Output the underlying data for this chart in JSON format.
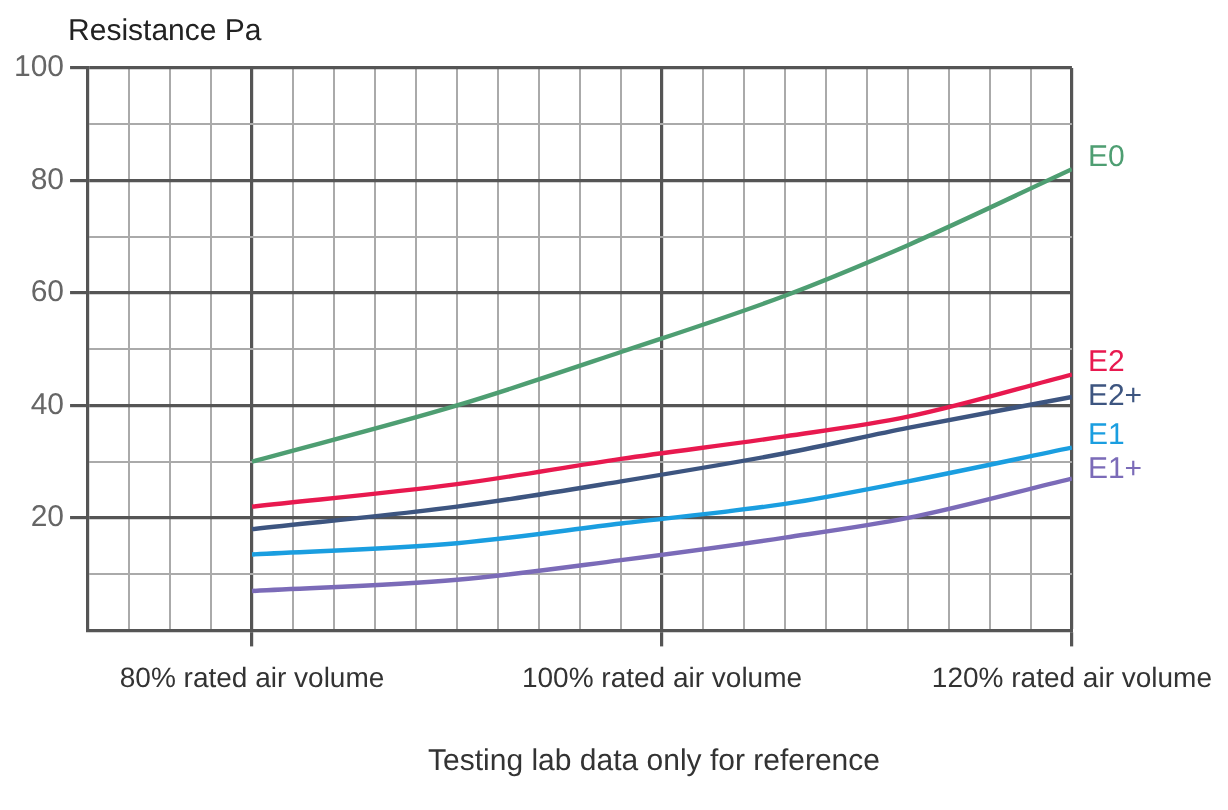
{
  "chart_data": {
    "type": "line",
    "ylabel": "Resistance Pa",
    "annotations": [
      "Testing lab data only for reference"
    ],
    "x": [
      80,
      90,
      98,
      106,
      112,
      120
    ],
    "series": [
      {
        "name": "E0",
        "color": "#4e9e72",
        "values": [
          30,
          40,
          49.5,
          59.5,
          68.5,
          82
        ]
      },
      {
        "name": "E2",
        "color": "#e8194f",
        "values": [
          22,
          26,
          30.5,
          34.5,
          38,
          45.5
        ]
      },
      {
        "name": "E2+",
        "color": "#3d5580",
        "values": [
          18,
          22,
          26.5,
          31.5,
          36,
          41.5
        ]
      },
      {
        "name": "E1",
        "color": "#1a9ee0",
        "values": [
          13.5,
          15.5,
          19,
          22.5,
          26.5,
          32.5
        ]
      },
      {
        "name": "E1+",
        "color": "#7b6bb8",
        "values": [
          7,
          9,
          12.5,
          16.5,
          20,
          27
        ]
      }
    ],
    "xlim": [
      72,
      120
    ],
    "xticks": [
      {
        "value": 72,
        "label": null
      },
      {
        "value": 74,
        "label": null
      },
      {
        "value": 76,
        "label": null
      },
      {
        "value": 78,
        "label": null
      },
      {
        "value": 80,
        "label": "80% rated air volume"
      },
      {
        "value": 82,
        "label": null
      },
      {
        "value": 84,
        "label": null
      },
      {
        "value": 86,
        "label": null
      },
      {
        "value": 88,
        "label": null
      },
      {
        "value": 90,
        "label": null
      },
      {
        "value": 92,
        "label": null
      },
      {
        "value": 94,
        "label": null
      },
      {
        "value": 96,
        "label": null
      },
      {
        "value": 98,
        "label": null
      },
      {
        "value": 100,
        "label": "100% rated air volume"
      },
      {
        "value": 102,
        "label": null
      },
      {
        "value": 104,
        "label": null
      },
      {
        "value": 106,
        "label": null
      },
      {
        "value": 108,
        "label": null
      },
      {
        "value": 110,
        "label": null
      },
      {
        "value": 112,
        "label": null
      },
      {
        "value": 114,
        "label": null
      },
      {
        "value": 116,
        "label": null
      },
      {
        "value": 118,
        "label": null
      },
      {
        "value": 120,
        "label": "120% rated air volume"
      }
    ],
    "ylim": [
      0,
      100
    ],
    "yticks": [
      {
        "value": 0,
        "label": null
      },
      {
        "value": 10,
        "label": null
      },
      20,
      {
        "value": 30,
        "label": null
      },
      40,
      {
        "value": 50,
        "label": null
      },
      60,
      {
        "value": 70,
        "label": null
      },
      80,
      {
        "value": 90,
        "label": null
      },
      100
    ],
    "grid": true
  }
}
